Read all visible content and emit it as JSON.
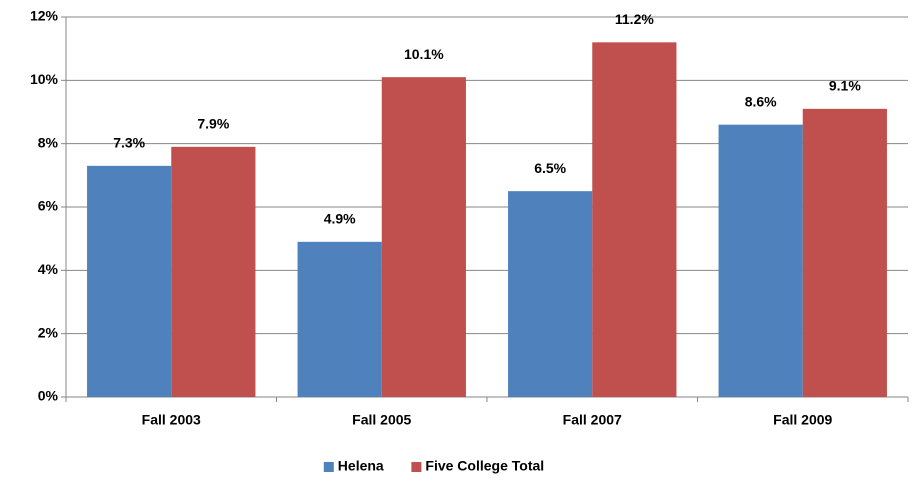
{
  "chart_data": {
    "type": "bar",
    "categories": [
      "Fall 2003",
      "Fall 2005",
      "Fall 2007",
      "Fall 2009"
    ],
    "series": [
      {
        "name": "Helena",
        "color": "#4f81bd",
        "values": [
          7.3,
          4.9,
          6.5,
          8.6
        ],
        "value_labels": [
          "7.3%",
          "4.9%",
          "6.5%",
          "8.6%"
        ]
      },
      {
        "name": "Five College Total",
        "color": "#c0504d",
        "values": [
          7.9,
          10.1,
          11.2,
          9.1
        ],
        "value_labels": [
          "7.9%",
          "10.1%",
          "11.2%",
          "9.1%"
        ]
      }
    ],
    "ylim": [
      0,
      12
    ],
    "yticks": [
      {
        "value": 0,
        "label": "0%"
      },
      {
        "value": 2,
        "label": "2%"
      },
      {
        "value": 4,
        "label": "4%"
      },
      {
        "value": 6,
        "label": "6%"
      },
      {
        "value": 8,
        "label": "8%"
      },
      {
        "value": 10,
        "label": "10%"
      },
      {
        "value": 12,
        "label": "12%"
      }
    ],
    "grid": true,
    "legend": "bottom"
  }
}
